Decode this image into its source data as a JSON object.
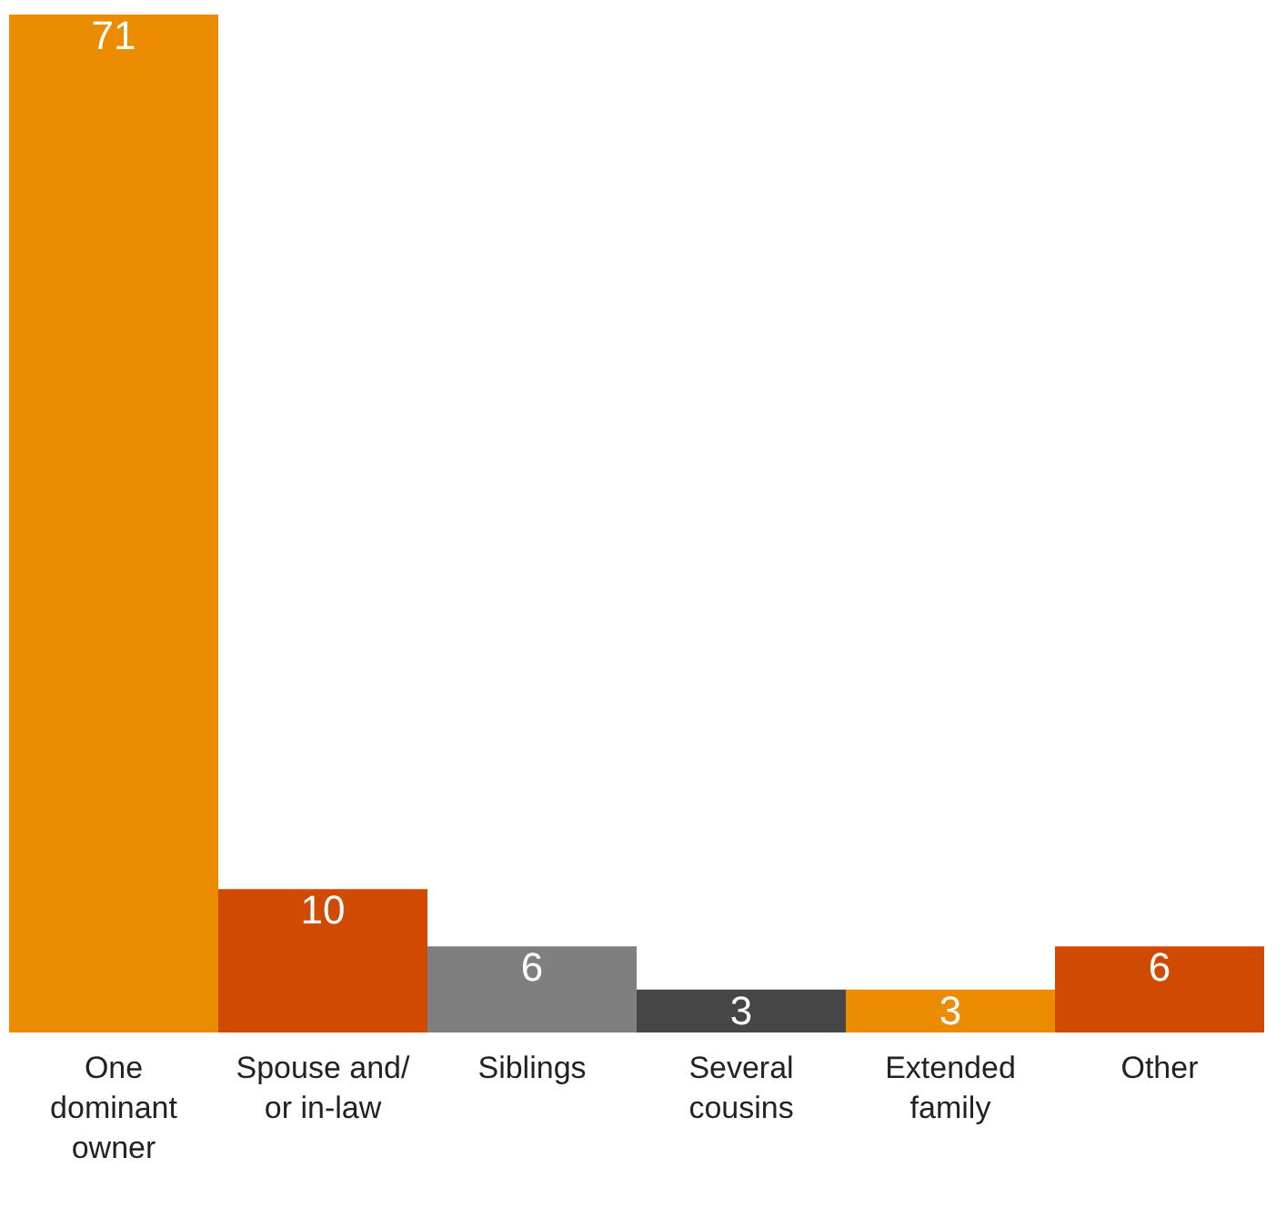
{
  "chart_data": {
    "type": "bar",
    "categories": [
      "One dominant owner",
      "Spouse and/or in-law",
      "Siblings",
      "Several cousins",
      "Extended family",
      "Other"
    ],
    "values": [
      71,
      10,
      6,
      3,
      3,
      6
    ],
    "colors": [
      "#eb8c00",
      "#d04a02",
      "#7f7f7f",
      "#464646",
      "#eb8c00",
      "#d04a02"
    ],
    "data_labels": true
  }
}
